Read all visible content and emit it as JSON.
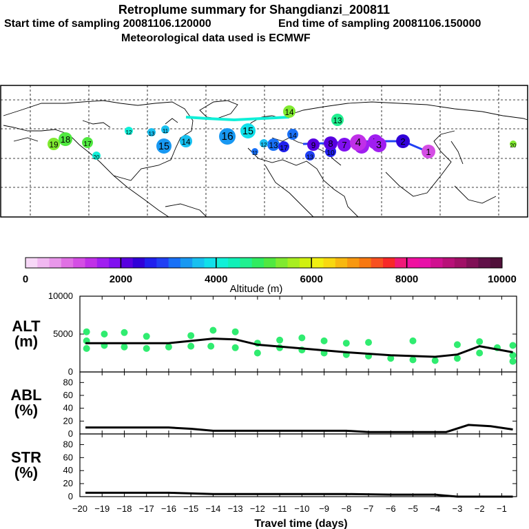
{
  "header": {
    "title": "Retroplume summary for Shangdianzi_200811",
    "start_label": "Start time of sampling 20081106.120000",
    "end_label": "End time of sampling 20081106.150000",
    "met_label": "Meteorological data used is ECMWF"
  },
  "colorbar": {
    "title": "Altitude (m)",
    "ticks": [
      "0",
      "2000",
      "4000",
      "6000",
      "8000",
      "10000"
    ],
    "colors": [
      "#f7d8f7",
      "#f1b8f1",
      "#e897ea",
      "#e070e4",
      "#d44ee4",
      "#c030e8",
      "#a01ef0",
      "#8010f0",
      "#5800e0",
      "#3000d8",
      "#2020ee",
      "#2040f4",
      "#1870f6",
      "#1898f2",
      "#18c0f0",
      "#10e0ea",
      "#10f0d8",
      "#10f0b8",
      "#20f090",
      "#30ec60",
      "#50e840",
      "#80ea30",
      "#a8ee20",
      "#d0f010",
      "#f0f010",
      "#f8d810",
      "#f8b810",
      "#f89810",
      "#f87810",
      "#f85020",
      "#f82828",
      "#f01878",
      "#f010a0",
      "#e810a8",
      "#d01090",
      "#b81078",
      "#a01066",
      "#801056",
      "#601048",
      "#50103a"
    ]
  },
  "map": {
    "labels": [
      "19",
      "18",
      "17",
      "20",
      "12",
      "13",
      "11",
      "14",
      "15",
      "16",
      "14",
      "13",
      "15",
      "13",
      "14",
      "12",
      "11",
      "17",
      "13",
      "10",
      "9",
      "8",
      "7",
      "6",
      "5",
      "4",
      "3",
      "2",
      "1",
      "20"
    ]
  },
  "chart_data": [
    {
      "type": "line",
      "panel": "ALT",
      "ylabel": "ALT\n(m)",
      "title": "",
      "ylim": [
        0,
        10000
      ],
      "yticks": [
        0,
        5000,
        10000
      ],
      "x": [
        -19.75,
        -18,
        -16,
        -14,
        -13,
        -12,
        -10,
        -8,
        -6,
        -4,
        -3,
        -2,
        -0.5
      ],
      "y": [
        3800,
        3800,
        3800,
        4400,
        4300,
        3600,
        3100,
        2600,
        2200,
        2000,
        2300,
        3400,
        2600
      ],
      "scatter": [
        {
          "x": -19.7,
          "y": 3100
        },
        {
          "x": -19.7,
          "y": 4100
        },
        {
          "x": -19.7,
          "y": 5300
        },
        {
          "x": -18.9,
          "y": 3500
        },
        {
          "x": -18.9,
          "y": 5000
        },
        {
          "x": -18.0,
          "y": 3300
        },
        {
          "x": -18.0,
          "y": 5200
        },
        {
          "x": -17.0,
          "y": 3100
        },
        {
          "x": -17.0,
          "y": 4700
        },
        {
          "x": -16.0,
          "y": 3300
        },
        {
          "x": -15.0,
          "y": 3400
        },
        {
          "x": -15.0,
          "y": 4800
        },
        {
          "x": -14.1,
          "y": 3400
        },
        {
          "x": -14.0,
          "y": 5500
        },
        {
          "x": -13.0,
          "y": 3200
        },
        {
          "x": -13.0,
          "y": 5300
        },
        {
          "x": -12.0,
          "y": 3800
        },
        {
          "x": -12.0,
          "y": 2500
        },
        {
          "x": -11.0,
          "y": 3200
        },
        {
          "x": -11.0,
          "y": 4200
        },
        {
          "x": -10.0,
          "y": 2900
        },
        {
          "x": -10.0,
          "y": 4500
        },
        {
          "x": -9.0,
          "y": 2500
        },
        {
          "x": -9.0,
          "y": 4100
        },
        {
          "x": -8.0,
          "y": 2300
        },
        {
          "x": -8.0,
          "y": 3800
        },
        {
          "x": -7.0,
          "y": 2100
        },
        {
          "x": -7.0,
          "y": 3900
        },
        {
          "x": -6.0,
          "y": 1800
        },
        {
          "x": -5.0,
          "y": 1600
        },
        {
          "x": -5.0,
          "y": 4100
        },
        {
          "x": -4.0,
          "y": 1500
        },
        {
          "x": -3.0,
          "y": 1800
        },
        {
          "x": -3.0,
          "y": 3600
        },
        {
          "x": -2.0,
          "y": 2500
        },
        {
          "x": -2.0,
          "y": 4000
        },
        {
          "x": -1.2,
          "y": 3200
        },
        {
          "x": -0.5,
          "y": 1400
        },
        {
          "x": -0.5,
          "y": 2200
        },
        {
          "x": -0.5,
          "y": 3500
        }
      ]
    },
    {
      "type": "line",
      "panel": "ABL",
      "ylabel": "ABL\n(%)",
      "ylim": [
        0,
        90
      ],
      "yticks": [
        0,
        20,
        40,
        60,
        80
      ],
      "x": [
        -19.75,
        -17,
        -16,
        -15,
        -14,
        -12,
        -10,
        -8,
        -7,
        -6,
        -4,
        -3.5,
        -2.5,
        -1.5,
        -0.5
      ],
      "y": [
        10,
        10,
        10,
        8,
        5,
        5,
        5,
        5,
        3,
        3,
        3,
        3,
        14,
        12,
        7
      ]
    },
    {
      "type": "line",
      "panel": "STR",
      "ylabel": "STR\n(%)",
      "ylim": [
        0,
        90
      ],
      "yticks": [
        0,
        20,
        40,
        60,
        80
      ],
      "xlabel": "Travel time (days)",
      "xticks": [
        -20,
        -19,
        -18,
        -17,
        -16,
        -15,
        -14,
        -13,
        -12,
        -11,
        -10,
        -9,
        -8,
        -7,
        -6,
        -5,
        -4,
        -3,
        -2,
        -1
      ],
      "x": [
        -19.75,
        -16,
        -14,
        -12,
        -10,
        -8,
        -6,
        -4,
        -3,
        -2,
        -1,
        -0.5
      ],
      "y": [
        6,
        6,
        4,
        4,
        4,
        4,
        3,
        3,
        0,
        0,
        0,
        0
      ]
    }
  ]
}
